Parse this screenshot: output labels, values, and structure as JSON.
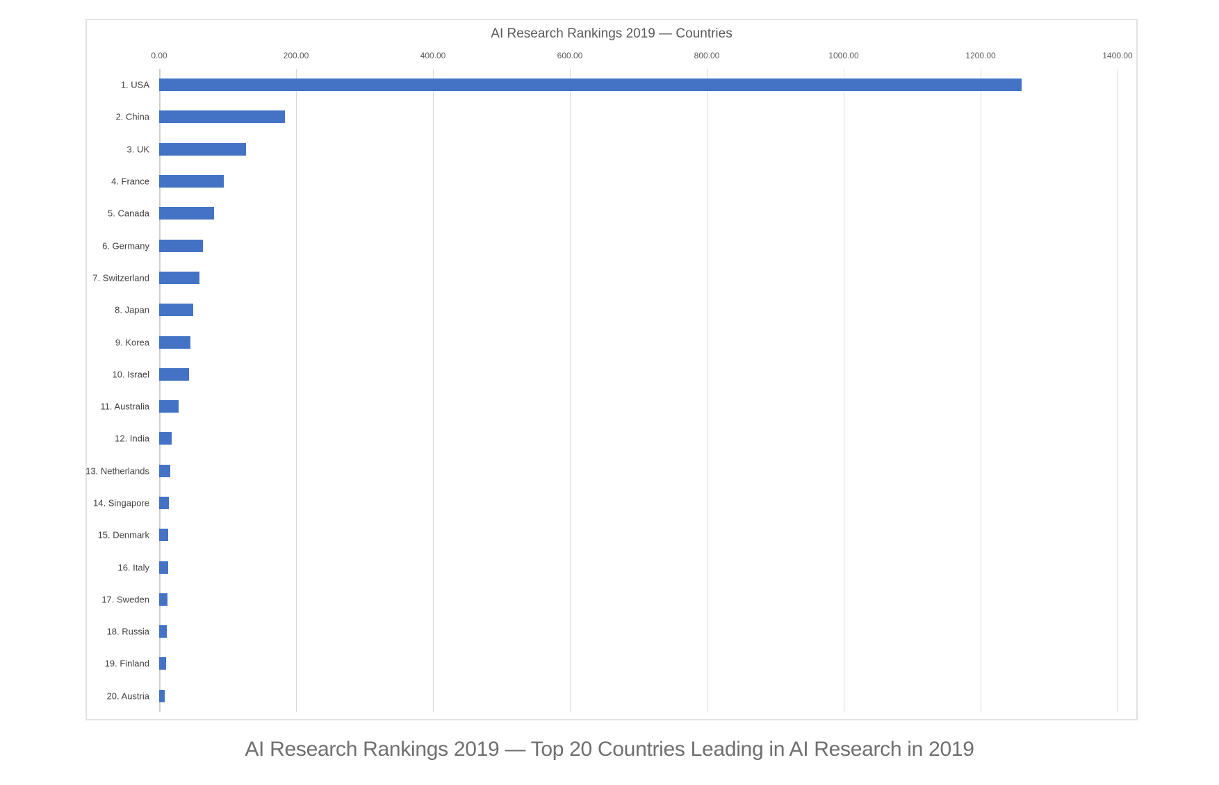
{
  "caption": "AI Research Rankings 2019 — Top 20 Countries Leading in AI Research in 2019",
  "chart_data": {
    "type": "bar",
    "orientation": "horizontal",
    "title": "AI Research Rankings 2019 — Countries",
    "categories": [
      "1. USA",
      "2. China",
      "3. UK",
      "4. France",
      "5. Canada",
      "6. Germany",
      "7. Switzerland",
      "8. Japan",
      "9. Korea",
      "10. Israel",
      "11. Australia",
      "12. India",
      "13. Netherlands",
      "14. Singapore",
      "15. Denmark",
      "16. Italy",
      "17. Sweden",
      "18. Russia",
      "19. Finland",
      "20. Austria"
    ],
    "values": [
      1260,
      184,
      127,
      94,
      80,
      64,
      59,
      50,
      46,
      44,
      28,
      18,
      16,
      14,
      13.5,
      13,
      12,
      11,
      10,
      8
    ],
    "xlabel": "",
    "ylabel": "",
    "xlim": [
      0,
      1400
    ],
    "x_tick_labels": [
      "0.00",
      "200.00",
      "400.00",
      "600.00",
      "800.00",
      "1000.00",
      "1200.00",
      "1400.00"
    ],
    "x_tick_values": [
      0,
      200,
      400,
      600,
      800,
      1000,
      1200,
      1400
    ],
    "grid": true,
    "legend": false,
    "colors": {
      "bar": "#4472c4",
      "gridline": "#d9d9d9",
      "zero_axis": "#cfcfcf",
      "title_text": "#595959",
      "tick_text": "#595959",
      "category_text": "#404040",
      "caption_text": "#6f6f6f",
      "panel_border": "#e2e2e2"
    }
  }
}
